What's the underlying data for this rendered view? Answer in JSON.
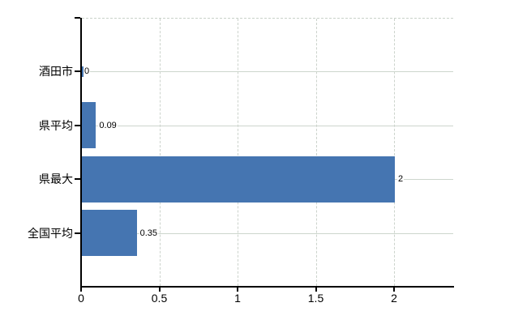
{
  "chart_data": {
    "type": "bar",
    "orientation": "horizontal",
    "title": "",
    "xlabel": "",
    "ylabel": "",
    "categories": [
      "酒田市",
      "県平均",
      "県最大",
      "全国平均"
    ],
    "values": [
      0,
      0.09,
      2,
      0.35
    ],
    "value_labels": [
      "0",
      "0.09",
      "2",
      "0.35"
    ],
    "x_ticks": [
      0,
      0.5,
      1,
      1.5,
      2
    ],
    "x_tick_labels": [
      "0",
      "0.5",
      "1",
      "1.5",
      "2"
    ],
    "xlim": [
      0,
      2.38
    ],
    "grid": true,
    "legend": false,
    "colors": {
      "bar": "#4575b1",
      "grid": "#cdd6cd",
      "axis": "#000000",
      "text": "#000000",
      "background": "#ffffff"
    }
  }
}
